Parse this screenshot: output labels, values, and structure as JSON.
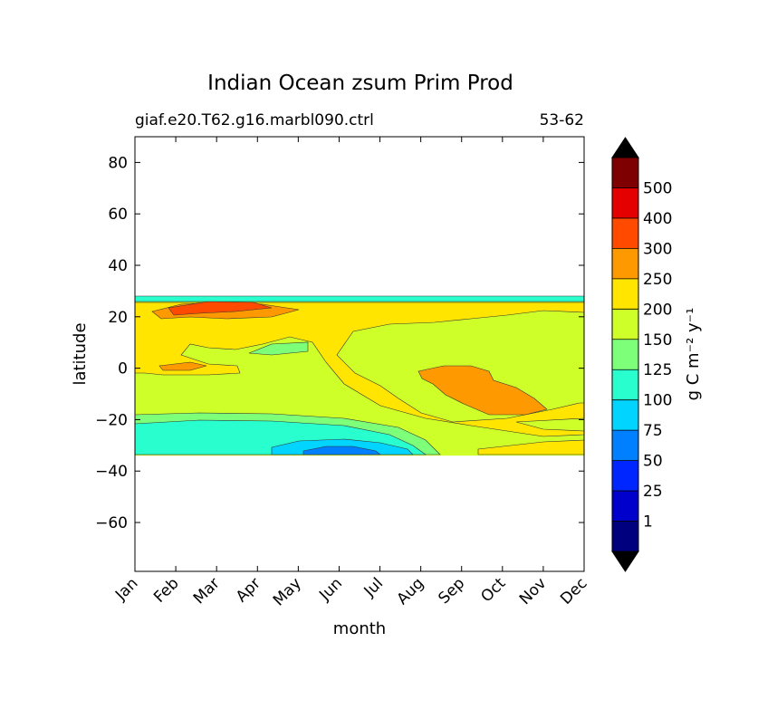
{
  "chart_data": {
    "type": "heatmap",
    "title": "Indian Ocean zsum Prim Prod",
    "subtitle_left": "giaf.e20.T62.g16.marbl090.ctrl",
    "subtitle_right": "53-62",
    "xlabel": "month",
    "ylabel": "latitude",
    "x_ticks": [
      "Jan",
      "Feb",
      "Mar",
      "Apr",
      "May",
      "Jun",
      "Jul",
      "Aug",
      "Sep",
      "Oct",
      "Nov",
      "Dec"
    ],
    "y_ticks": [
      80,
      60,
      40,
      20,
      0,
      -20,
      -40,
      -60
    ],
    "ylim": [
      -79,
      90
    ],
    "data_lat_range": [
      -34,
      27
    ],
    "colorbar": {
      "label": "g C m⁻² y⁻¹",
      "levels": [
        "1",
        "25",
        "50",
        "75",
        "100",
        "125",
        "150",
        "200",
        "250",
        "300",
        "400",
        "500"
      ],
      "colors": [
        "#00007f",
        "#0000cd",
        "#0026ff",
        "#0080ff",
        "#00d4ff",
        "#29ffce",
        "#7dff7a",
        "#ceff29",
        "#ffe500",
        "#ff9900",
        "#ff4a00",
        "#e40000",
        "#7f0000"
      ],
      "extend": "both",
      "under_color": "#000000",
      "over_color": "#000000"
    },
    "regions": [
      {
        "level": "150-200",
        "color": "#ceff29",
        "desc": "background"
      },
      {
        "level": "200-250",
        "color": "#ffe500",
        "desc": "northern band"
      },
      {
        "level": "200-250",
        "color": "#ffe500",
        "desc": "Jul-Oct equatorial"
      },
      {
        "level": "250-300",
        "color": "#ff9900",
        "desc": "Sep-Oct core"
      },
      {
        "level": "300-400",
        "color": "#ff4a00",
        "desc": "Feb-Apr 22N"
      },
      {
        "level": "100-125",
        "color": "#29ffce",
        "desc": "southern band"
      },
      {
        "level": "75-100",
        "color": "#00d4ff",
        "desc": "May-Jul 30S"
      }
    ]
  }
}
